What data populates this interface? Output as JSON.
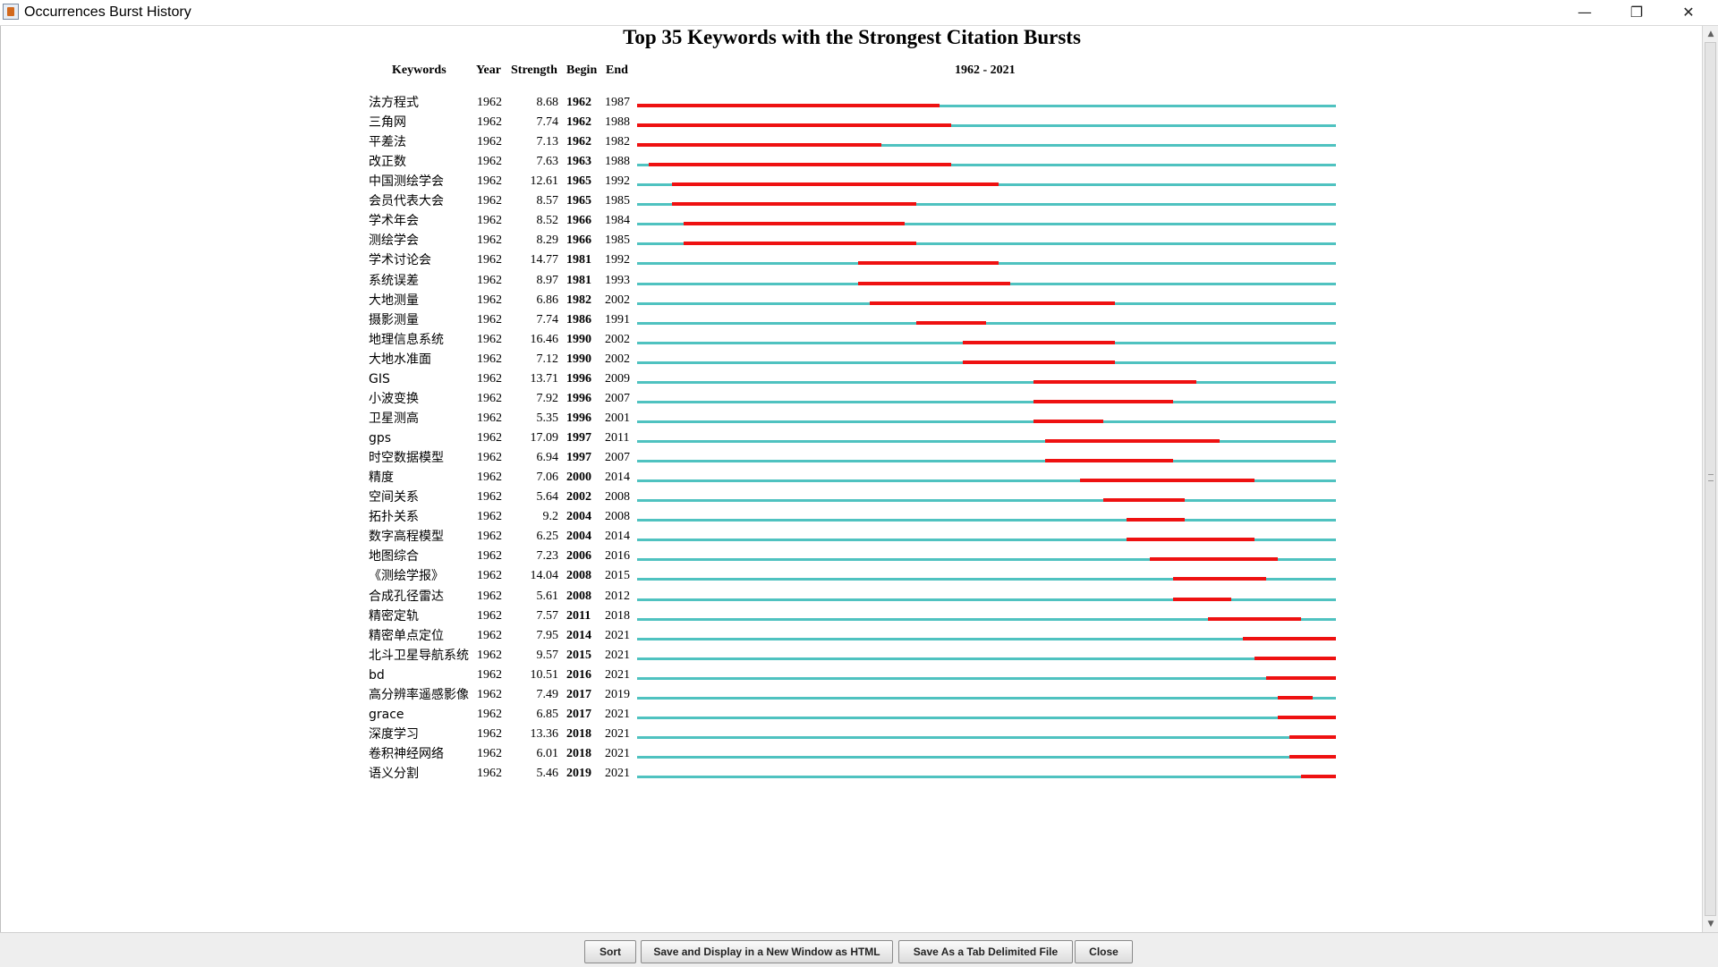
{
  "window": {
    "title": "Occurrences Burst History",
    "minimize_glyph": "—",
    "restore_glyph": "❐",
    "close_glyph": "✕"
  },
  "chart_title": "Top 35 Keywords with the Strongest Citation Bursts",
  "headers": {
    "keywords": "Keywords",
    "year": "Year",
    "strength": "Strength",
    "begin": "Begin",
    "end": "End",
    "range": "1962 - 2021"
  },
  "colors": {
    "timeline": "#4fc2c0",
    "burst": "#ee1111"
  },
  "chart_data": {
    "type": "table",
    "range": [
      1962,
      2021
    ],
    "rows": [
      {
        "keyword": "法方程式",
        "year": "1962",
        "strength": "8.68",
        "begin": "1962",
        "end": "1987"
      },
      {
        "keyword": "三角网",
        "year": "1962",
        "strength": "7.74",
        "begin": "1962",
        "end": "1988"
      },
      {
        "keyword": "平差法",
        "year": "1962",
        "strength": "7.13",
        "begin": "1962",
        "end": "1982"
      },
      {
        "keyword": "改正数",
        "year": "1962",
        "strength": "7.63",
        "begin": "1963",
        "end": "1988"
      },
      {
        "keyword": "中国测绘学会",
        "year": "1962",
        "strength": "12.61",
        "begin": "1965",
        "end": "1992"
      },
      {
        "keyword": "会员代表大会",
        "year": "1962",
        "strength": "8.57",
        "begin": "1965",
        "end": "1985"
      },
      {
        "keyword": "学术年会",
        "year": "1962",
        "strength": "8.52",
        "begin": "1966",
        "end": "1984"
      },
      {
        "keyword": "测绘学会",
        "year": "1962",
        "strength": "8.29",
        "begin": "1966",
        "end": "1985"
      },
      {
        "keyword": "学术讨论会",
        "year": "1962",
        "strength": "14.77",
        "begin": "1981",
        "end": "1992"
      },
      {
        "keyword": "系统误差",
        "year": "1962",
        "strength": "8.97",
        "begin": "1981",
        "end": "1993"
      },
      {
        "keyword": "大地测量",
        "year": "1962",
        "strength": "6.86",
        "begin": "1982",
        "end": "2002"
      },
      {
        "keyword": "摄影测量",
        "year": "1962",
        "strength": "7.74",
        "begin": "1986",
        "end": "1991"
      },
      {
        "keyword": "地理信息系统",
        "year": "1962",
        "strength": "16.46",
        "begin": "1990",
        "end": "2002"
      },
      {
        "keyword": "大地水准面",
        "year": "1962",
        "strength": "7.12",
        "begin": "1990",
        "end": "2002"
      },
      {
        "keyword": "GIS",
        "year": "1962",
        "strength": "13.71",
        "begin": "1996",
        "end": "2009"
      },
      {
        "keyword": "小波变换",
        "year": "1962",
        "strength": "7.92",
        "begin": "1996",
        "end": "2007"
      },
      {
        "keyword": "卫星测高",
        "year": "1962",
        "strength": "5.35",
        "begin": "1996",
        "end": "2001"
      },
      {
        "keyword": "gps",
        "year": "1962",
        "strength": "17.09",
        "begin": "1997",
        "end": "2011"
      },
      {
        "keyword": "时空数据模型",
        "year": "1962",
        "strength": "6.94",
        "begin": "1997",
        "end": "2007"
      },
      {
        "keyword": "精度",
        "year": "1962",
        "strength": "7.06",
        "begin": "2000",
        "end": "2014"
      },
      {
        "keyword": "空间关系",
        "year": "1962",
        "strength": "5.64",
        "begin": "2002",
        "end": "2008"
      },
      {
        "keyword": "拓扑关系",
        "year": "1962",
        "strength": "9.2",
        "begin": "2004",
        "end": "2008"
      },
      {
        "keyword": "数字高程模型",
        "year": "1962",
        "strength": "6.25",
        "begin": "2004",
        "end": "2014"
      },
      {
        "keyword": "地图综合",
        "year": "1962",
        "strength": "7.23",
        "begin": "2006",
        "end": "2016"
      },
      {
        "keyword": "《测绘学报》",
        "year": "1962",
        "strength": "14.04",
        "begin": "2008",
        "end": "2015"
      },
      {
        "keyword": "合成孔径雷达",
        "year": "1962",
        "strength": "5.61",
        "begin": "2008",
        "end": "2012"
      },
      {
        "keyword": "精密定轨",
        "year": "1962",
        "strength": "7.57",
        "begin": "2011",
        "end": "2018"
      },
      {
        "keyword": "精密单点定位",
        "year": "1962",
        "strength": "7.95",
        "begin": "2014",
        "end": "2021"
      },
      {
        "keyword": "北斗卫星导航系统",
        "year": "1962",
        "strength": "9.57",
        "begin": "2015",
        "end": "2021"
      },
      {
        "keyword": "bd",
        "year": "1962",
        "strength": "10.51",
        "begin": "2016",
        "end": "2021"
      },
      {
        "keyword": "高分辨率遥感影像",
        "year": "1962",
        "strength": "7.49",
        "begin": "2017",
        "end": "2019"
      },
      {
        "keyword": "grace",
        "year": "1962",
        "strength": "6.85",
        "begin": "2017",
        "end": "2021"
      },
      {
        "keyword": "深度学习",
        "year": "1962",
        "strength": "13.36",
        "begin": "2018",
        "end": "2021"
      },
      {
        "keyword": "卷积神经网络",
        "year": "1962",
        "strength": "6.01",
        "begin": "2018",
        "end": "2021"
      },
      {
        "keyword": "语义分割",
        "year": "1962",
        "strength": "5.46",
        "begin": "2019",
        "end": "2021"
      }
    ]
  },
  "buttons": {
    "sort": "Sort",
    "save_html": "Save and Display in a New Window as HTML",
    "save_tab": "Save As a Tab Delimited File",
    "close": "Close"
  },
  "scrollbar": {
    "up_glyph": "▲",
    "down_glyph": "▼"
  }
}
